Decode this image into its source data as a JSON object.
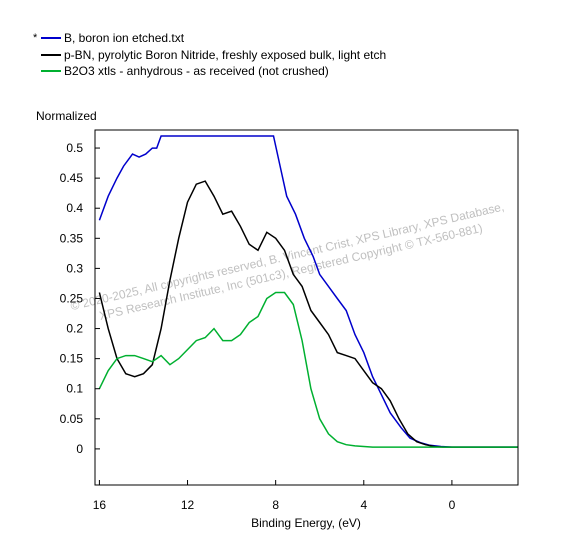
{
  "chart_data": {
    "type": "line",
    "title": "",
    "xlabel": "Binding Energy, (eV)",
    "ylabel": "Normalized",
    "xlim": [
      16.2,
      -3.0
    ],
    "ylim": [
      -0.06,
      0.53
    ],
    "x_ticks": [
      16,
      12,
      8,
      4,
      0
    ],
    "x_tick_labels": [
      "16",
      "12",
      "8",
      "4",
      "0"
    ],
    "y_ticks": [
      0,
      0.05,
      0.1,
      0.15,
      0.2,
      0.25,
      0.3,
      0.35,
      0.4,
      0.45,
      0.5
    ],
    "y_tick_labels": [
      "0",
      "0.05",
      "0.1",
      "0.15",
      "0.2",
      "0.25",
      "0.3",
      "0.35",
      "0.4",
      "0.45",
      "0.5"
    ],
    "grid": false,
    "legend_position": "top-left",
    "legend_marker": "*",
    "series": [
      {
        "name": "B, boron ion etched.txt",
        "color": "#0000cc",
        "x": [
          16.0,
          15.6,
          15.2,
          14.9,
          14.5,
          14.2,
          13.9,
          13.6,
          13.4,
          13.2,
          12.5,
          11.0,
          9.5,
          8.1,
          7.8,
          7.5,
          7.1,
          6.7,
          6.3,
          6.0,
          5.6,
          5.2,
          4.8,
          4.4,
          4.0,
          3.6,
          3.2,
          2.8,
          2.3,
          1.9,
          1.4,
          1.0,
          0.5,
          0.0,
          -1.0,
          -2.0,
          -3.0
        ],
        "y": [
          0.38,
          0.42,
          0.45,
          0.47,
          0.49,
          0.485,
          0.49,
          0.5,
          0.5,
          0.52,
          0.52,
          0.52,
          0.52,
          0.52,
          0.47,
          0.42,
          0.39,
          0.35,
          0.32,
          0.29,
          0.27,
          0.25,
          0.23,
          0.19,
          0.16,
          0.12,
          0.09,
          0.06,
          0.035,
          0.018,
          0.01,
          0.006,
          0.004,
          0.003,
          0.003,
          0.003,
          0.003
        ]
      },
      {
        "name": "p-BN, pyrolytic Boron Nitride, freshly exposed bulk, light etch",
        "color": "#000000",
        "x": [
          16.0,
          15.6,
          15.2,
          14.8,
          14.4,
          14.0,
          13.6,
          13.2,
          12.8,
          12.4,
          12.0,
          11.6,
          11.2,
          10.8,
          10.4,
          10.0,
          9.6,
          9.2,
          8.8,
          8.4,
          8.0,
          7.6,
          7.2,
          6.8,
          6.4,
          6.0,
          5.6,
          5.2,
          4.8,
          4.4,
          4.0,
          3.6,
          3.2,
          2.8,
          2.4,
          2.0,
          1.6,
          1.2,
          0.8,
          0.4,
          0.0,
          -1.0,
          -2.0,
          -3.0
        ],
        "y": [
          0.26,
          0.2,
          0.15,
          0.125,
          0.12,
          0.125,
          0.14,
          0.2,
          0.28,
          0.35,
          0.41,
          0.44,
          0.445,
          0.42,
          0.39,
          0.395,
          0.37,
          0.34,
          0.33,
          0.36,
          0.35,
          0.33,
          0.29,
          0.27,
          0.23,
          0.21,
          0.19,
          0.16,
          0.155,
          0.15,
          0.13,
          0.11,
          0.1,
          0.08,
          0.05,
          0.025,
          0.012,
          0.007,
          0.004,
          0.003,
          0.003,
          0.003,
          0.003,
          0.003
        ]
      },
      {
        "name": "B2O3 xtls - anhydrous - as received (not crushed)",
        "color": "#00b030",
        "x": [
          16.0,
          15.6,
          15.2,
          14.8,
          14.4,
          14.0,
          13.6,
          13.2,
          12.8,
          12.4,
          12.0,
          11.6,
          11.2,
          10.8,
          10.4,
          10.0,
          9.6,
          9.2,
          8.8,
          8.4,
          8.0,
          7.6,
          7.2,
          6.8,
          6.4,
          6.0,
          5.6,
          5.2,
          4.8,
          4.4,
          4.0,
          3.6,
          3.2,
          2.8,
          2.0,
          1.0,
          0.0,
          -1.0,
          -2.0,
          -3.0
        ],
        "y": [
          0.1,
          0.13,
          0.15,
          0.155,
          0.155,
          0.15,
          0.145,
          0.155,
          0.14,
          0.15,
          0.165,
          0.18,
          0.185,
          0.2,
          0.18,
          0.18,
          0.19,
          0.21,
          0.22,
          0.25,
          0.26,
          0.26,
          0.24,
          0.18,
          0.1,
          0.05,
          0.025,
          0.012,
          0.007,
          0.005,
          0.004,
          0.003,
          0.003,
          0.003,
          0.003,
          0.003,
          0.003,
          0.003,
          0.003,
          0.003
        ]
      }
    ],
    "watermark": {
      "line1": "© 2020-2025, All copyrights reserved, B. Vincent Crist, XPS Library, XPS Database,",
      "line2": "XPS Research Institute, Inc (501c3), Registered Copyright © TX-560-881)"
    }
  }
}
